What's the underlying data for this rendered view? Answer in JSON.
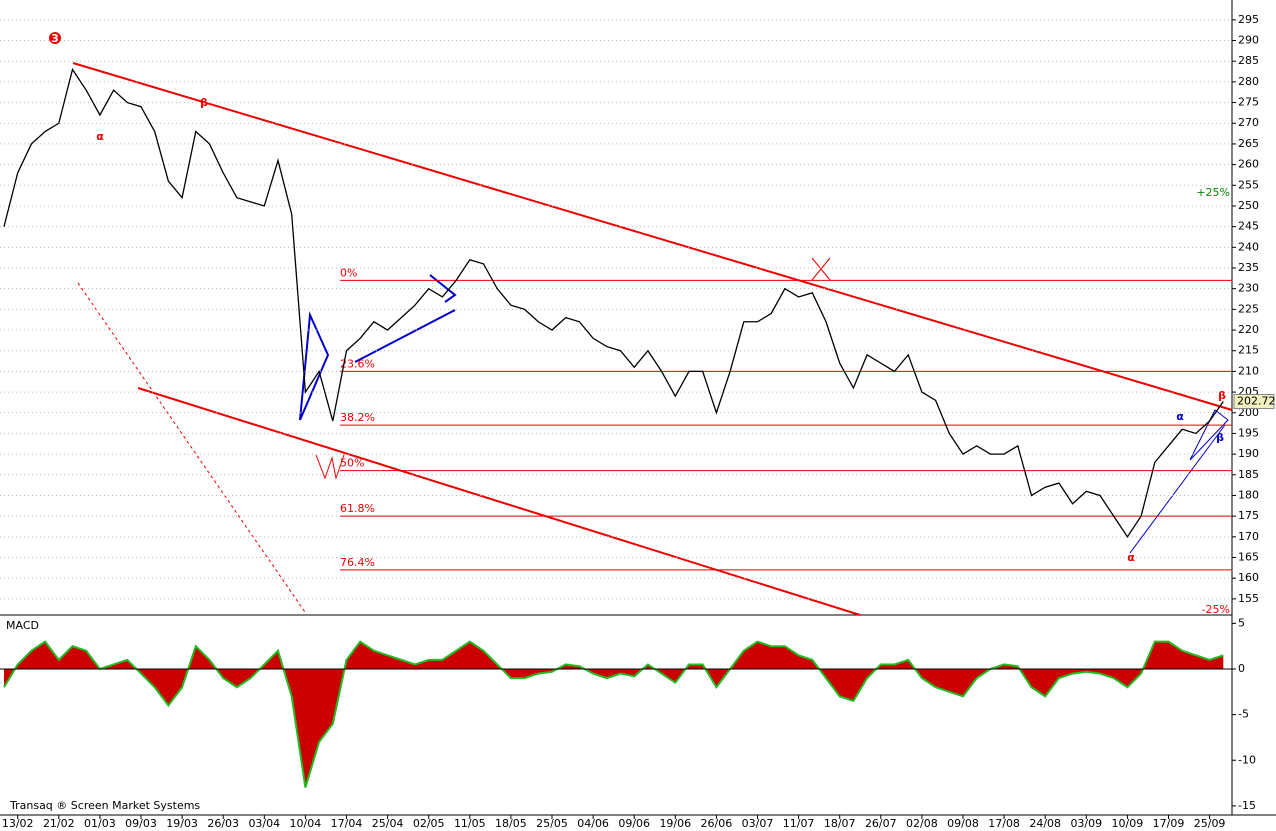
{
  "chart_data": [
    {
      "type": "line",
      "color": "#000000",
      "values": [
        245,
        258,
        265,
        268,
        270,
        283,
        278,
        272,
        278,
        275,
        274,
        268,
        256,
        252,
        268,
        265,
        258,
        252,
        251,
        250,
        261,
        248,
        205,
        210,
        198,
        215,
        218,
        222,
        220,
        223,
        226,
        230,
        228,
        232,
        237,
        236,
        230,
        226,
        225,
        222,
        220,
        223,
        222,
        218,
        216,
        215,
        211,
        215,
        210,
        204,
        210,
        210,
        200,
        210,
        222,
        222,
        224,
        230,
        228,
        229,
        222,
        212,
        206,
        214,
        212,
        210,
        214,
        205,
        203,
        195,
        190,
        192,
        190,
        190,
        192,
        180,
        182,
        183,
        178,
        181,
        180,
        175,
        170,
        175,
        188,
        192,
        196,
        195,
        198,
        202.72
      ],
      "ylim": [
        151.1,
        299.8
      ],
      "yticks": [
        155,
        160,
        165,
        170,
        175,
        180,
        185,
        190,
        195,
        200,
        205,
        210,
        215,
        220,
        225,
        230,
        235,
        240,
        245,
        250,
        255,
        260,
        265,
        270,
        275,
        280,
        285,
        290,
        295
      ],
      "grid": true,
      "fib_levels": [
        {
          "label": "0%",
          "value": 232
        },
        {
          "label": "23.6%",
          "value": 210
        },
        {
          "label": "38.2%",
          "value": 197
        },
        {
          "label": "50%",
          "value": 186
        },
        {
          "label": "61.8%",
          "value": 175
        },
        {
          "label": "76.4%",
          "value": 162
        }
      ],
      "annotations": [
        "3",
        "α",
        "β",
        "α",
        "β",
        "α",
        "β"
      ],
      "percent_labels": [
        "+25%",
        "-25%"
      ]
    },
    {
      "type": "area",
      "title": "MACD",
      "color": "#cc0000",
      "line_color": "#22bb22",
      "categories": [
        null,
        "13/02",
        null,
        null,
        "21/02",
        null,
        null,
        "01/03",
        null,
        null,
        "09/03",
        null,
        null,
        "19/03",
        null,
        null,
        "26/03",
        null,
        null,
        "03/04",
        null,
        null,
        "10/04",
        null,
        null,
        "17/04",
        null,
        null,
        "25/04",
        null,
        null,
        "02/05",
        null,
        null,
        "11/05",
        null,
        null,
        "18/05",
        null,
        null,
        "25/05",
        null,
        null,
        "04/06",
        null,
        null,
        "09/06",
        null,
        null,
        "19/06",
        null,
        null,
        "26/06",
        null,
        null,
        "03/07",
        null,
        null,
        "11/07",
        null,
        null,
        "18/07",
        null,
        null,
        "26/07",
        null,
        null,
        "02/08",
        null,
        null,
        "09/08",
        null,
        null,
        "17/08",
        null,
        null,
        "24/08",
        null,
        null,
        "03/09",
        null,
        null,
        "10/09",
        null,
        null,
        "17/09",
        null,
        null,
        "25/09",
        null
      ],
      "values": [
        -2,
        0.5,
        2,
        3,
        1,
        2.5,
        2,
        0,
        0.5,
        1,
        -0.5,
        -2,
        -4,
        -2,
        2.5,
        1,
        -1,
        -2,
        -1,
        0.5,
        2,
        -3,
        -13,
        -8,
        -6,
        1,
        3,
        2,
        1.5,
        1,
        0.5,
        1,
        1,
        2,
        3,
        2,
        0.5,
        -1,
        -1,
        -0.5,
        -0.3,
        0.5,
        0.3,
        -0.5,
        -1,
        -0.5,
        -0.8,
        0.5,
        -0.5,
        -1.5,
        0.5,
        0.5,
        -2,
        0,
        2,
        3,
        2.5,
        2.5,
        1.5,
        1,
        -1,
        -3,
        -3.5,
        -1,
        0.5,
        0.5,
        1,
        -1,
        -2,
        -2.5,
        -3,
        -1,
        0,
        0.5,
        0.3,
        -2,
        -3,
        -1,
        -0.5,
        -0.3,
        -0.5,
        -1,
        -2,
        -0.5,
        3,
        3,
        2,
        1.5,
        1,
        1.5
      ],
      "ylim": [
        -16,
        5.7
      ],
      "yticks": [
        5,
        0,
        -5,
        -10,
        -15
      ]
    }
  ],
  "footer": "Transaq ® Screen Market Systems"
}
